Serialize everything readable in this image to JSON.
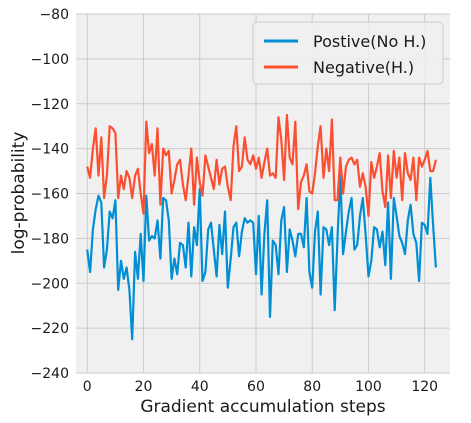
{
  "chart_data": {
    "type": "line",
    "xlabel": "Gradient accumulation steps",
    "ylabel": "log-probability",
    "xlim": [
      -4,
      129
    ],
    "ylim": [
      -240,
      -80
    ],
    "x_ticks": [
      0,
      20,
      40,
      60,
      80,
      100,
      120
    ],
    "y_ticks": [
      -240,
      -220,
      -200,
      -180,
      -160,
      -140,
      -120,
      -100,
      -80
    ],
    "x_tick_labels": [
      "0",
      "20",
      "40",
      "60",
      "80",
      "100",
      "120"
    ],
    "y_tick_labels": [
      "−240",
      "−220",
      "−200",
      "−180",
      "−160",
      "−140",
      "−120",
      "−100",
      "−80"
    ],
    "grid": true,
    "legend_position": "top-right",
    "x_start": 0,
    "x_step": 1,
    "series": [
      {
        "name": "Postive(No H.)",
        "color": "#008fd5",
        "values": [
          -185,
          -195,
          -176,
          -167,
          -161,
          -164,
          -193,
          -185,
          -168,
          -171,
          -163,
          -203,
          -190,
          -198,
          -193,
          -203,
          -225,
          -186,
          -198,
          -178,
          -199,
          -161,
          -181,
          -179,
          -180,
          -172,
          -189,
          -162,
          -163,
          -172,
          -198,
          -189,
          -196,
          -182,
          -183,
          -193,
          -173,
          -197,
          -175,
          -183,
          -158,
          -199,
          -195,
          -176,
          -173,
          -185,
          -197,
          -174,
          -187,
          -168,
          -202,
          -189,
          -175,
          -173,
          -188,
          -177,
          -171,
          -173,
          -172,
          -173,
          -196,
          -170,
          -205,
          -178,
          -163,
          -215,
          -181,
          -183,
          -196,
          -172,
          -166,
          -195,
          -176,
          -181,
          -188,
          -178,
          -178,
          -184,
          -162,
          -195,
          -202,
          -177,
          -168,
          -205,
          -175,
          -176,
          -183,
          -175,
          -212,
          -180,
          -152,
          -187,
          -177,
          -168,
          -162,
          -185,
          -183,
          -170,
          -162,
          -178,
          -197,
          -190,
          -175,
          -176,
          -184,
          -177,
          -192,
          -164,
          -198,
          -162,
          -170,
          -179,
          -182,
          -187,
          -172,
          -165,
          -178,
          -182,
          -199,
          -173,
          -174,
          -178,
          -153,
          -174,
          -193
        ]
      },
      {
        "name": "Negative(H.)",
        "color": "#fc4f30",
        "values": [
          -148,
          -153,
          -140,
          -131,
          -152,
          -135,
          -162,
          -152,
          -130,
          -131,
          -133,
          -162,
          -152,
          -158,
          -150,
          -153,
          -162,
          -152,
          -149,
          -160,
          -169,
          -128,
          -142,
          -138,
          -152,
          -131,
          -165,
          -140,
          -143,
          -141,
          -160,
          -154,
          -147,
          -145,
          -156,
          -163,
          -152,
          -140,
          -165,
          -144,
          -155,
          -161,
          -143,
          -148,
          -153,
          -158,
          -145,
          -156,
          -149,
          -148,
          -157,
          -163,
          -139,
          -130,
          -150,
          -148,
          -135,
          -145,
          -147,
          -143,
          -149,
          -144,
          -153,
          -146,
          -140,
          -152,
          -151,
          -153,
          -126,
          -136,
          -154,
          -125,
          -144,
          -147,
          -128,
          -167,
          -155,
          -152,
          -147,
          -159,
          -160,
          -151,
          -139,
          -130,
          -153,
          -140,
          -150,
          -127,
          -163,
          -163,
          -144,
          -160,
          -148,
          -145,
          -144,
          -147,
          -145,
          -157,
          -151,
          -157,
          -170,
          -146,
          -153,
          -148,
          -142,
          -159,
          -166,
          -143,
          -162,
          -141,
          -153,
          -144,
          -163,
          -142,
          -151,
          -154,
          -144,
          -163,
          -144,
          -148,
          -145,
          -141,
          -150,
          -150,
          -145
        ]
      }
    ]
  }
}
